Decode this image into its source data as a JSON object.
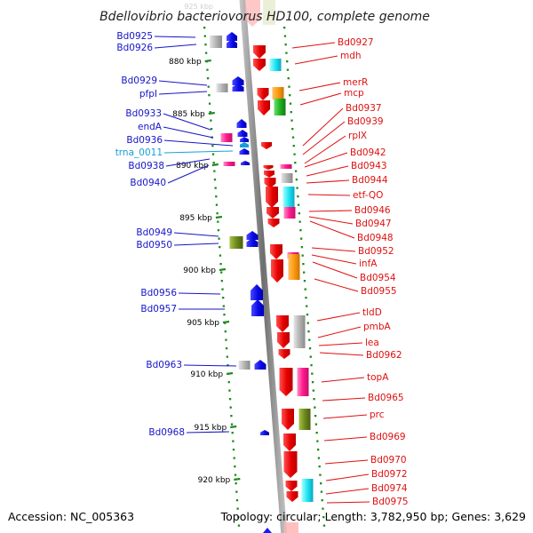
{
  "title": "Bdellovibrio bacteriovorus HD100, complete genome",
  "footer": {
    "accession": "Accession: NC_005363",
    "topology": "Topology: circular; Length: 3,782,950 bp; Genes: 3,629"
  },
  "colors": {
    "label_left": "#1515c8",
    "label_right": "#e01010",
    "trna": "#16a0d8",
    "axis": "#8c8c8c",
    "tick": "#1f8a1f"
  },
  "kbp_labels": [
    "880 kbp",
    "885 kbp",
    "890 kbp",
    "895 kbp",
    "900 kbp",
    "905 kbp",
    "910 kbp",
    "915 kbp",
    "920 kbp"
  ],
  "faded_top_label": "925 kbp",
  "left_labels": [
    "Bd0925",
    "Bd0926",
    "Bd0929",
    "pfpI",
    "Bd0933",
    "endA",
    "Bd0936",
    "trna_0011",
    "Bd0938",
    "Bd0940",
    "Bd0949",
    "Bd0950",
    "Bd0956",
    "Bd0957",
    "Bd0963",
    "Bd0968"
  ],
  "right_labels": [
    "Bd0927",
    "mdh",
    "merR",
    "mcp",
    "Bd0937",
    "Bd0939",
    "rplX",
    "Bd0942",
    "Bd0943",
    "Bd0944",
    "etf-QO",
    "Bd0946",
    "Bd0947",
    "Bd0948",
    "Bd0952",
    "infA",
    "Bd0954",
    "Bd0955",
    "tldD",
    "pmbA",
    "lea",
    "Bd0962",
    "topA",
    "Bd0965",
    "prc",
    "Bd0969",
    "Bd0970",
    "Bd0972",
    "Bd0974",
    "Bd0975"
  ]
}
